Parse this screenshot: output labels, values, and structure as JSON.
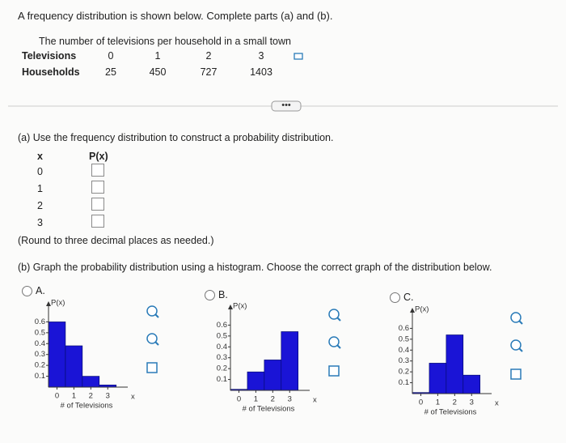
{
  "instruction": "A frequency distribution is shown below. Complete parts (a) and (b).",
  "table": {
    "caption": "The number of televisions per household in a small town",
    "rows": [
      [
        "Televisions",
        "0",
        "1",
        "2",
        "3"
      ],
      [
        "Households",
        "25",
        "450",
        "727",
        "1403"
      ]
    ]
  },
  "part_a": {
    "prompt": "(a) Use the frequency distribution to construct a probability distribution.",
    "headers": [
      "x",
      "P(x)"
    ],
    "x": [
      "0",
      "1",
      "2",
      "3"
    ],
    "note": "(Round to three decimal places as needed.)"
  },
  "part_b": {
    "prompt": "(b) Graph the probability distribution using a histogram. Choose the correct graph of the distribution below.",
    "option_labels": [
      "A.",
      "B.",
      "C."
    ]
  },
  "chart_data": [
    {
      "type": "bar",
      "y_label": "P(x)",
      "x_label": "# of Televisions",
      "x_symbol": "x",
      "color": "#1a14d6",
      "x": [
        0,
        1,
        2,
        3
      ],
      "values": [
        0.6,
        0.38,
        0.1,
        0.02
      ],
      "xlim": [
        -0.5,
        3.8
      ],
      "xticks": [
        0,
        1,
        2,
        3
      ],
      "ylim": [
        0,
        0.7
      ],
      "yticks": [
        0.1,
        0.2,
        0.3,
        0.4,
        0.5,
        0.6
      ]
    },
    {
      "type": "bar",
      "y_label": "P(x)",
      "x_label": "# of Televisions",
      "x_symbol": "x",
      "color": "#1a14d6",
      "x": [
        0,
        1,
        2,
        3
      ],
      "values": [
        0.01,
        0.17,
        0.28,
        0.54
      ],
      "xlim": [
        -0.5,
        3.8
      ],
      "xticks": [
        0,
        1,
        2,
        3
      ],
      "ylim": [
        0,
        0.7
      ],
      "yticks": [
        0.1,
        0.2,
        0.3,
        0.4,
        0.5,
        0.6
      ]
    },
    {
      "type": "bar",
      "y_label": "P(x)",
      "x_label": "# of Televisions",
      "x_symbol": "x",
      "color": "#1a14d6",
      "x": [
        0,
        1,
        2,
        3
      ],
      "values": [
        0.01,
        0.28,
        0.54,
        0.17
      ],
      "xlim": [
        -0.5,
        3.8
      ],
      "xticks": [
        0,
        1,
        2,
        3
      ],
      "ylim": [
        0,
        0.7
      ],
      "yticks": [
        0.1,
        0.2,
        0.3,
        0.4,
        0.5,
        0.6
      ]
    }
  ]
}
